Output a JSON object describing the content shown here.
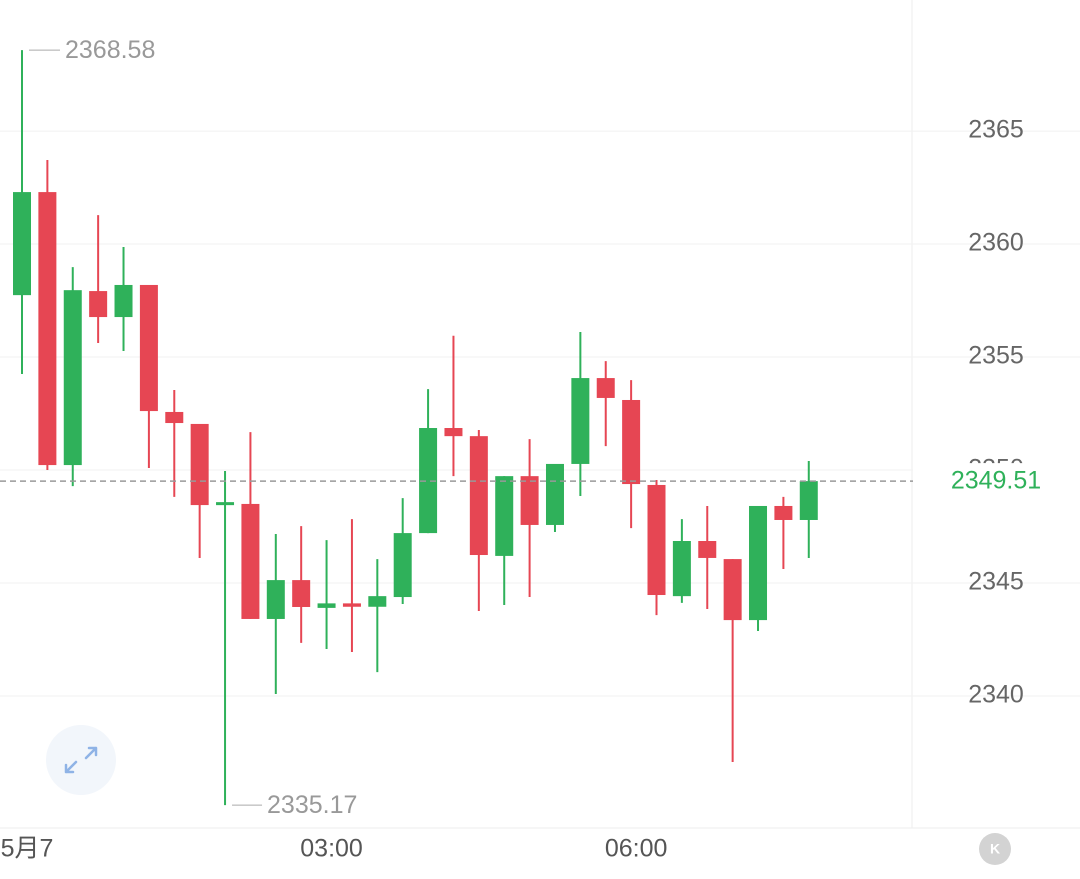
{
  "chart_data": {
    "type": "candlestick",
    "categories": [
      "5月7",
      null,
      null,
      null,
      null,
      null,
      null,
      null,
      null,
      null,
      null,
      null,
      "03:00",
      null,
      null,
      null,
      null,
      null,
      null,
      null,
      null,
      null,
      null,
      null,
      "06:00",
      null,
      null,
      null,
      null,
      null,
      null,
      null
    ],
    "open": [
      2357.74,
      2362.3,
      2350.22,
      2357.92,
      2356.77,
      2358.19,
      2352.57,
      2352.04,
      2348.49,
      2348.5,
      2343.41,
      2345.13,
      2343.9,
      2344.1,
      2343.95,
      2344.38,
      2347.21,
      2351.86,
      2351.5,
      2346.2,
      2349.73,
      2347.57,
      2350.27,
      2354.07,
      2353.1,
      2349.34,
      2344.42,
      2346.86,
      2346.06,
      2343.36,
      2348.41,
      2347.79
    ],
    "high": [
      2368.58,
      2363.72,
      2358.98,
      2361.28,
      2359.87,
      2358.19,
      2353.54,
      2352.04,
      2349.96,
      2351.68,
      2347.17,
      2347.52,
      2346.9,
      2347.83,
      2346.06,
      2348.76,
      2353.58,
      2355.94,
      2351.77,
      2349.73,
      2351.37,
      2350.27,
      2356.11,
      2354.82,
      2353.98,
      2349.56,
      2347.83,
      2348.41,
      2346.06,
      2348.41,
      2348.81,
      2350.4
    ],
    "low": [
      2354.25,
      2350.0,
      2349.29,
      2355.62,
      2355.27,
      2350.09,
      2348.81,
      2346.11,
      2335.17,
      2343.41,
      2340.09,
      2342.35,
      2342.08,
      2341.95,
      2341.06,
      2344.07,
      2347.21,
      2349.73,
      2343.76,
      2344.03,
      2344.38,
      2347.26,
      2348.85,
      2351.06,
      2347.43,
      2343.58,
      2344.12,
      2343.85,
      2337.08,
      2342.88,
      2345.62,
      2346.11
    ],
    "close": [
      2362.3,
      2350.22,
      2357.96,
      2356.77,
      2358.19,
      2352.61,
      2352.08,
      2348.45,
      2348.58,
      2343.41,
      2345.13,
      2343.94,
      2344.1,
      2343.95,
      2344.42,
      2347.21,
      2351.86,
      2351.5,
      2346.24,
      2349.73,
      2347.57,
      2350.27,
      2354.07,
      2353.19,
      2349.38,
      2344.47,
      2346.86,
      2346.11,
      2343.36,
      2348.41,
      2347.79,
      2349.51
    ],
    "up_color": "#2fb15a",
    "down_color": "#e64653",
    "ylim": [
      2334.16,
      2370.8
    ],
    "yticks": [
      2340,
      2345,
      2350,
      2355,
      2360,
      2365
    ],
    "grid": true,
    "high_label": 2368.58,
    "low_label": 2335.17,
    "last_price": 2349.51
  }
}
